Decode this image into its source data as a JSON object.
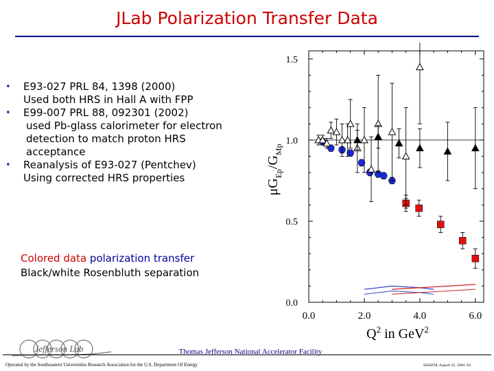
{
  "page": {
    "title": "JLab Polarization Transfer Data"
  },
  "bullets": [
    {
      "lines": [
        "E93-027   PRL 84, 1398 (2000)",
        "Used both HRS in Hall A with FPP"
      ]
    },
    {
      "lines": [
        "E99-007   PRL 88, 092301 (2002)",
        "used Pb-glass calorimeter for electron",
        "detection to match proton HRS",
        "acceptance"
      ]
    },
    {
      "lines": [
        "Reanalysis of E93-027 (Pentchev)",
        "Using corrected HRS properties"
      ]
    }
  ],
  "note": {
    "colored_label": "Colored data",
    "polarization_label": "polarization transfer",
    "rosenbluth_label": "Black/white Rosenbluth separation"
  },
  "footer": {
    "lab_name": "Thomas Jefferson National Accelerator Facility",
    "operator": "Operated by the Southeastern Universities Research Association for the U.S. Department Of Energy",
    "logo_text": "Jefferson Lab",
    "event": "SUSSP58, August 22, 2004, 63"
  },
  "colors": {
    "title": "#cc0000",
    "blue_points": "#1a2bd6",
    "red_points": "#e01010",
    "line_band_blue": "#3344cc",
    "line_band_red": "#cc2222"
  },
  "chart_data": {
    "type": "scatter",
    "xlabel_parts": [
      "Q",
      "2",
      " in GeV",
      "2"
    ],
    "ylabel_parts": [
      "μG",
      "Ep",
      "/G",
      "Mp"
    ],
    "xticks": [
      "0.0",
      "2.0",
      "4.0",
      "6.0"
    ],
    "yticks": [
      "0.0",
      "0.5",
      "1.0",
      "1.5"
    ],
    "xlim": [
      0.0,
      6.3
    ],
    "ylim": [
      0.0,
      1.55
    ],
    "reference_line": 1.0,
    "series": [
      {
        "marker": "circle",
        "color": "#1a2bd6",
        "points": [
          {
            "x": 0.5,
            "y": 0.99,
            "err": 0.02
          },
          {
            "x": 0.8,
            "y": 0.95,
            "err": 0.02
          },
          {
            "x": 1.2,
            "y": 0.94,
            "err": 0.02
          },
          {
            "x": 1.5,
            "y": 0.92,
            "err": 0.02
          },
          {
            "x": 1.9,
            "y": 0.86,
            "err": 0.02
          },
          {
            "x": 2.2,
            "y": 0.8,
            "err": 0.02
          },
          {
            "x": 2.5,
            "y": 0.79,
            "err": 0.02
          },
          {
            "x": 2.7,
            "y": 0.78,
            "err": 0.02
          },
          {
            "x": 3.0,
            "y": 0.75,
            "err": 0.02
          },
          {
            "x": 3.5,
            "y": 0.61,
            "err": 0.03
          }
        ]
      },
      {
        "marker": "square",
        "color": "#e01010",
        "points": [
          {
            "x": 3.5,
            "y": 0.61,
            "err": 0.05
          },
          {
            "x": 3.97,
            "y": 0.58,
            "err": 0.05
          },
          {
            "x": 4.75,
            "y": 0.48,
            "err": 0.05
          },
          {
            "x": 5.54,
            "y": 0.38,
            "err": 0.05
          },
          {
            "x": 6.0,
            "y": 0.27,
            "err": 0.06
          }
        ]
      },
      {
        "marker": "triangle-open",
        "color": "#000000",
        "points": [
          {
            "x": 0.35,
            "y": 1.0,
            "err": 0.03
          },
          {
            "x": 0.5,
            "y": 1.0,
            "err": 0.03
          },
          {
            "x": 0.65,
            "y": 0.98,
            "err": 0.03
          },
          {
            "x": 0.8,
            "y": 1.06,
            "err": 0.05
          },
          {
            "x": 1.0,
            "y": 1.05,
            "err": 0.08
          },
          {
            "x": 1.2,
            "y": 1.0,
            "err": 0.1
          },
          {
            "x": 1.4,
            "y": 1.0,
            "err": 0.1
          },
          {
            "x": 1.5,
            "y": 1.1,
            "err": 0.15
          },
          {
            "x": 1.75,
            "y": 0.95,
            "err": 0.15
          },
          {
            "x": 2.0,
            "y": 1.0,
            "err": 0.2
          },
          {
            "x": 2.25,
            "y": 0.82,
            "err": 0.2
          },
          {
            "x": 2.5,
            "y": 1.1,
            "err": 0.3
          },
          {
            "x": 3.0,
            "y": 1.05,
            "err": 0.3
          },
          {
            "x": 3.5,
            "y": 0.9,
            "err": 0.3
          },
          {
            "x": 4.0,
            "y": 1.45,
            "err": 0.35
          }
        ]
      },
      {
        "marker": "triangle-filled",
        "color": "#000000",
        "points": [
          {
            "x": 1.75,
            "y": 1.0,
            "err": 0.06
          },
          {
            "x": 2.5,
            "y": 1.02,
            "err": 0.07
          },
          {
            "x": 3.25,
            "y": 0.98,
            "err": 0.09
          },
          {
            "x": 4.0,
            "y": 0.95,
            "err": 0.12
          },
          {
            "x": 5.0,
            "y": 0.93,
            "err": 0.18
          },
          {
            "x": 6.0,
            "y": 0.95,
            "err": 0.25
          }
        ]
      }
    ],
    "systematic_bands": [
      {
        "color": "#3344cc",
        "x": [
          2.0,
          3.0,
          4.0,
          4.5
        ],
        "y": [
          0.08,
          0.1,
          0.09,
          0.08
        ]
      },
      {
        "color": "#cc2222",
        "x": [
          3.0,
          4.0,
          5.0,
          6.0
        ],
        "y": [
          0.08,
          0.09,
          0.1,
          0.11
        ]
      }
    ]
  }
}
